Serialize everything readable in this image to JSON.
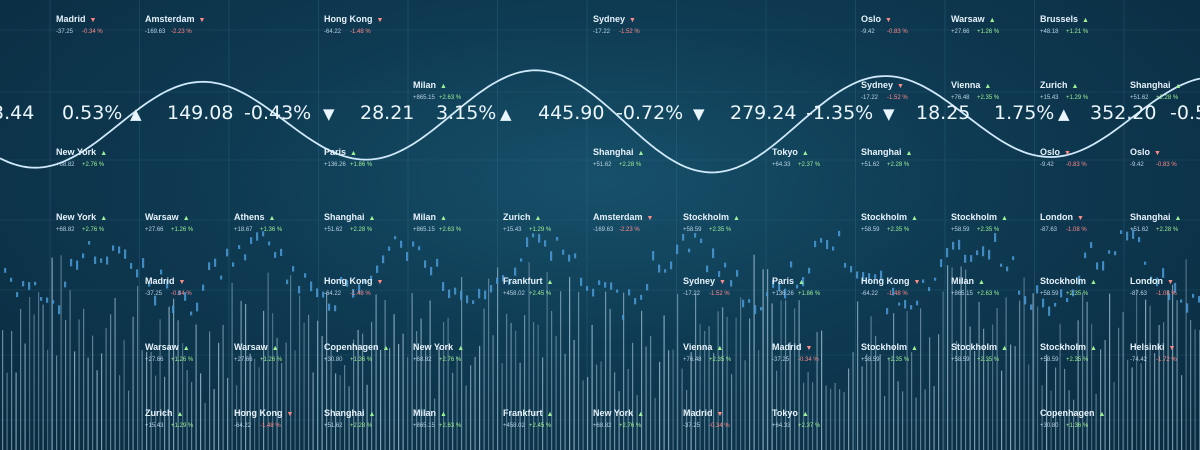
{
  "ticker": [
    {
      "text": "3.44"
    },
    {
      "text": "0.53%"
    },
    {
      "text": "▲"
    },
    {
      "text": "149.08"
    },
    {
      "text": "-0.43%"
    },
    {
      "text": "▼"
    },
    {
      "text": "28.21"
    },
    {
      "text": "3.15%"
    },
    {
      "text": "▲"
    },
    {
      "text": "445.90"
    },
    {
      "text": "-0.72%"
    },
    {
      "text": "▼"
    },
    {
      "text": "279.24"
    },
    {
      "text": "-1.35%"
    },
    {
      "text": "▼"
    },
    {
      "text": "18.25"
    },
    {
      "text": "1.75%"
    },
    {
      "text": "▲"
    },
    {
      "text": "352.20"
    },
    {
      "text": "-0.5"
    }
  ],
  "cities": [
    {
      "name": "Madrid",
      "dir": "down",
      "price": "-37.25",
      "change": "-0.34 %"
    },
    {
      "name": "Amsterdam",
      "dir": "down",
      "price": "-169.63",
      "change": "-2.23 %"
    },
    {
      "name": "Hong Kong",
      "dir": "down",
      "price": "-64.22",
      "change": "-1.48 %"
    },
    {
      "name": "Sydney",
      "dir": "down",
      "price": "-17.22",
      "change": "-1.52 %"
    },
    {
      "name": "Oslo",
      "dir": "down",
      "price": "-9.42",
      "change": "-0.83 %"
    },
    {
      "name": "Warsaw",
      "dir": "up",
      "price": "+27.66",
      "change": "+1.26 %"
    },
    {
      "name": "Brussels",
      "dir": "up",
      "price": "+48.18",
      "change": "+1.21 %"
    },
    {
      "name": "Milan",
      "dir": "up",
      "price": "+865.15",
      "change": "+2.63 %"
    },
    {
      "name": "Sydney",
      "dir": "down",
      "price": "-17.22",
      "change": "-1.52 %"
    },
    {
      "name": "Vienna",
      "dir": "up",
      "price": "+76.48",
      "change": "+2.35 %"
    },
    {
      "name": "Zurich",
      "dir": "up",
      "price": "+15.43",
      "change": "+1.29 %"
    },
    {
      "name": "Shanghai",
      "dir": "up",
      "price": "+51.62",
      "change": "+2.28 %"
    },
    {
      "name": "New York",
      "dir": "up",
      "price": "+68.82",
      "change": "+2.76 %"
    },
    {
      "name": "Paris",
      "dir": "up",
      "price": "+136.26",
      "change": "+1.86 %"
    },
    {
      "name": "Shanghai",
      "dir": "up",
      "price": "+51.62",
      "change": "+2.28 %"
    },
    {
      "name": "Tokyo",
      "dir": "up",
      "price": "+64.33",
      "change": "+2.37 %"
    },
    {
      "name": "Shanghai",
      "dir": "up",
      "price": "+51.62",
      "change": "+2.28 %"
    },
    {
      "name": "Oslo",
      "dir": "down",
      "price": "-9.42",
      "change": "-0.83 %"
    },
    {
      "name": "Oslo",
      "dir": "down",
      "price": "-9.42",
      "change": "-0.83 %"
    },
    {
      "name": "New York",
      "dir": "up",
      "price": "+68.82",
      "change": "+2.76 %"
    },
    {
      "name": "Warsaw",
      "dir": "up",
      "price": "+27.66",
      "change": "+1.26 %"
    },
    {
      "name": "Athens",
      "dir": "up",
      "price": "+18.67",
      "change": "+1.36 %"
    },
    {
      "name": "Shanghai",
      "dir": "up",
      "price": "+51.62",
      "change": "+2.28 %"
    },
    {
      "name": "Milan",
      "dir": "up",
      "price": "+865.15",
      "change": "+2.63 %"
    },
    {
      "name": "Zurich",
      "dir": "up",
      "price": "+15.43",
      "change": "+1.29 %"
    },
    {
      "name": "Amsterdam",
      "dir": "down",
      "price": "-169.63",
      "change": "-2.23 %"
    },
    {
      "name": "Stockholm",
      "dir": "up",
      "price": "+58.59",
      "change": "+2.35 %"
    },
    {
      "name": "Stockholm",
      "dir": "up",
      "price": "+58.59",
      "change": "+2.35 %"
    },
    {
      "name": "Stockholm",
      "dir": "up",
      "price": "+58.59",
      "change": "+2.35 %"
    },
    {
      "name": "London",
      "dir": "down",
      "price": "-87.63",
      "change": "-1.08 %"
    },
    {
      "name": "Shanghai",
      "dir": "up",
      "price": "+51.62",
      "change": "+2.28 %"
    },
    {
      "name": "Madrid",
      "dir": "down",
      "price": "-37.25",
      "change": "-0.34 %"
    },
    {
      "name": "Hong Kong",
      "dir": "down",
      "price": "-64.22",
      "change": "-1.48 %"
    },
    {
      "name": "Frankfurt",
      "dir": "up",
      "price": "+458.02",
      "change": "+2.45 %"
    },
    {
      "name": "Sydney",
      "dir": "down",
      "price": "-17.22",
      "change": "-1.52 %"
    },
    {
      "name": "Paris",
      "dir": "up",
      "price": "+136.26",
      "change": "+1.86 %"
    },
    {
      "name": "Hong Kong",
      "dir": "down",
      "price": "-64.22",
      "change": "-1.48 %"
    },
    {
      "name": "Milan",
      "dir": "up",
      "price": "+865.15",
      "change": "+2.63 %"
    },
    {
      "name": "Stockholm",
      "dir": "up",
      "price": "+58.59",
      "change": "+2.35 %"
    },
    {
      "name": "London",
      "dir": "down",
      "price": "-87.63",
      "change": "-1.08 %"
    },
    {
      "name": "Warsaw",
      "dir": "up",
      "price": "+27.66",
      "change": "+1.26 %"
    },
    {
      "name": "Warsaw",
      "dir": "up",
      "price": "+27.66",
      "change": "+1.26 %"
    },
    {
      "name": "Copenhagen",
      "dir": "up",
      "price": "+30.80",
      "change": "+1.36 %"
    },
    {
      "name": "New York",
      "dir": "up",
      "price": "+68.82",
      "change": "+2.76 %"
    },
    {
      "name": "Vienna",
      "dir": "up",
      "price": "+76.48",
      "change": "+2.35 %"
    },
    {
      "name": "Madrid",
      "dir": "down",
      "price": "-37.25",
      "change": "-0.34 %"
    },
    {
      "name": "Stockholm",
      "dir": "up",
      "price": "+58.59",
      "change": "+2.35 %"
    },
    {
      "name": "Stockholm",
      "dir": "up",
      "price": "+58.59",
      "change": "+2.35 %"
    },
    {
      "name": "Stockholm",
      "dir": "up",
      "price": "+58.59",
      "change": "+2.35 %"
    },
    {
      "name": "Helsinki",
      "dir": "down",
      "price": "-74.42",
      "change": "-1.72 %"
    },
    {
      "name": "Zurich",
      "dir": "up",
      "price": "+15.43",
      "change": "+1.29 %"
    },
    {
      "name": "Hong Kong",
      "dir": "down",
      "price": "-64.22",
      "change": "-1.48 %"
    },
    {
      "name": "Shanghai",
      "dir": "up",
      "price": "+51.62",
      "change": "+2.28 %"
    },
    {
      "name": "Milan",
      "dir": "up",
      "price": "+865.15",
      "change": "+2.63 %"
    },
    {
      "name": "Frankfurt",
      "dir": "up",
      "price": "+458.02",
      "change": "+2.45 %"
    },
    {
      "name": "New York",
      "dir": "up",
      "price": "+68.82",
      "change": "+2.76 %"
    },
    {
      "name": "Madrid",
      "dir": "down",
      "price": "-37.25",
      "change": "-0.34 %"
    },
    {
      "name": "Tokyo",
      "dir": "up",
      "price": "+64.33",
      "change": "+2.37 %"
    },
    {
      "name": "Copenhagen",
      "dir": "up",
      "price": "+30.80",
      "change": "+1.36 %"
    }
  ],
  "colors": {
    "up": "#9ff09a",
    "down": "#ff8a8a",
    "curve": "#cfe9fb",
    "candles": "#4a9ad6",
    "volume": "#b7d7ea"
  }
}
